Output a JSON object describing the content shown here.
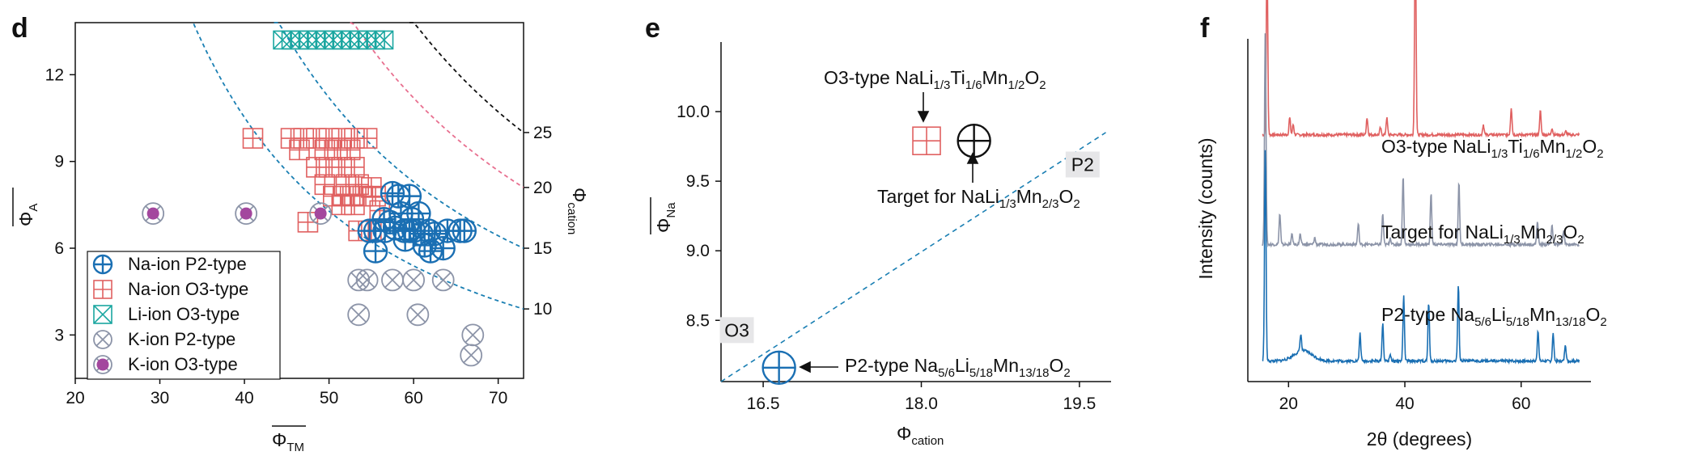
{
  "colors": {
    "p2": "#1a6fb3",
    "o3": "#e06060",
    "li": "#1aa6a0",
    "k": "#8c94a8",
    "kfill": "#a3479e",
    "curve_blue": "#1a7fb3",
    "curve_pink": "#e87090",
    "curve_black": "#111111",
    "xrd_red": "#e06060",
    "xrd_grey": "#8c94a8",
    "xrd_blue": "#1a6fb3",
    "band_grey": "#e6e6e8"
  },
  "chart_data": [
    {
      "panel": "d",
      "type": "scatter",
      "xlabel": "Φ",
      "xlabel_sub": "TM",
      "ylabel": "Φ",
      "ylabel_sub": "A",
      "y2label": "Φ",
      "y2label_sub": "cation",
      "xlim": [
        20,
        73
      ],
      "ylim": [
        1.5,
        13.8
      ],
      "xticks": [
        20,
        30,
        40,
        50,
        60,
        70
      ],
      "yticks": [
        3,
        6,
        9,
        12
      ],
      "contours": [
        {
          "label": "10",
          "c": 10.0,
          "y_right": 3.9,
          "color_key": "curve_blue"
        },
        {
          "label": "15",
          "c": 14.5,
          "y_right": 6.0,
          "color_key": "curve_blue"
        },
        {
          "label": "20",
          "c": 19.5,
          "y_right": 8.1,
          "color_key": "curve_pink"
        },
        {
          "label": "25",
          "c": 24.2,
          "y_right": 10.0,
          "color_key": "curve_black"
        }
      ],
      "legend": [
        {
          "key": "p2",
          "label": "Na-ion P2-type"
        },
        {
          "key": "o3",
          "label": "Na-ion O3-type"
        },
        {
          "key": "li",
          "label": "Li-ion O3-type"
        },
        {
          "key": "k",
          "label": "K-ion P2-type"
        },
        {
          "key": "kfill",
          "label": "K-ion O3-type"
        }
      ],
      "series": {
        "p2": [
          [
            57.5,
            7.9
          ],
          [
            58.2,
            7.8
          ],
          [
            59.5,
            7.8
          ],
          [
            58.5,
            7.2
          ],
          [
            59.8,
            7.0
          ],
          [
            60.6,
            7.2
          ],
          [
            56.5,
            7.0
          ],
          [
            57.2,
            6.9
          ],
          [
            55.5,
            6.6
          ],
          [
            56.6,
            6.6
          ],
          [
            57.8,
            6.7
          ],
          [
            58.9,
            6.6
          ],
          [
            60.0,
            6.6
          ],
          [
            60.9,
            6.5
          ],
          [
            61.8,
            6.6
          ],
          [
            62.5,
            6.5
          ],
          [
            64.0,
            6.6
          ],
          [
            65.5,
            6.6
          ],
          [
            66.0,
            6.6
          ],
          [
            54.8,
            6.6
          ],
          [
            59.0,
            6.3
          ],
          [
            62.0,
            5.9
          ],
          [
            63.5,
            6.0
          ],
          [
            55.5,
            5.9
          ],
          [
            59.5,
            6.6
          ],
          [
            61.3,
            6.1
          ]
        ],
        "o3": [
          [
            41,
            9.8
          ],
          [
            45.5,
            9.8
          ],
          [
            47,
            9.8
          ],
          [
            48.5,
            9.8
          ],
          [
            50,
            9.8
          ],
          [
            51.5,
            9.8
          ],
          [
            53,
            9.8
          ],
          [
            54.5,
            9.8
          ],
          [
            46.5,
            9.4
          ],
          [
            49.5,
            9.4
          ],
          [
            51,
            9.4
          ],
          [
            52.5,
            9.4
          ],
          [
            48.5,
            8.8
          ],
          [
            50,
            8.8
          ],
          [
            51.5,
            8.8
          ],
          [
            53,
            8.8
          ],
          [
            49.5,
            8.2
          ],
          [
            52,
            8.2
          ],
          [
            53.5,
            8.2
          ],
          [
            50.5,
            7.8
          ],
          [
            52.5,
            7.8
          ],
          [
            54,
            7.8
          ],
          [
            55.5,
            7.8
          ],
          [
            51.5,
            7.5
          ],
          [
            53,
            7.5
          ],
          [
            55,
            8.1
          ],
          [
            47.5,
            6.9
          ],
          [
            56,
            7.3
          ],
          [
            53.5,
            6.6
          ],
          [
            55,
            6.6
          ]
        ],
        "li": [
          [
            44.5,
            13.2
          ],
          [
            45.5,
            13.2
          ],
          [
            46.5,
            13.2
          ],
          [
            47.5,
            13.2
          ],
          [
            48.5,
            13.2
          ],
          [
            49.5,
            13.2
          ],
          [
            50.5,
            13.2
          ],
          [
            51.5,
            13.2
          ],
          [
            52.5,
            13.2
          ],
          [
            53.5,
            13.2
          ],
          [
            54.5,
            13.2
          ],
          [
            55.5,
            13.2
          ],
          [
            56.5,
            13.2
          ]
        ],
        "k": [
          [
            29.2,
            7.2
          ],
          [
            40.2,
            7.2
          ],
          [
            49.0,
            7.2
          ],
          [
            53.5,
            4.9
          ],
          [
            54.5,
            4.9
          ],
          [
            57.5,
            4.9
          ],
          [
            60.0,
            4.9
          ],
          [
            63.5,
            4.9
          ],
          [
            53.5,
            3.7
          ],
          [
            60.5,
            3.7
          ],
          [
            67.0,
            3.0
          ],
          [
            66.8,
            2.3
          ]
        ],
        "kfill": [
          [
            29.2,
            7.2
          ],
          [
            40.2,
            7.2
          ],
          [
            49.0,
            7.2
          ]
        ]
      }
    },
    {
      "panel": "e",
      "type": "scatter",
      "xlabel": "Φ",
      "xlabel_sub": "cation",
      "ylabel": "Φ",
      "ylabel_sub": "Na",
      "xlim": [
        16.1,
        19.8
      ],
      "ylim": [
        8.06,
        10.5
      ],
      "xticks": [
        16.5,
        18.0,
        19.5
      ],
      "yticks": [
        8.5,
        9.0,
        9.5,
        10.0
      ],
      "xtick_labels": [
        "16.5",
        "18.0",
        "19.5"
      ],
      "ytick_labels": [
        "8.5",
        "9.0",
        "9.5",
        "10.0"
      ],
      "boundary": [
        [
          16.1,
          8.06
        ],
        [
          19.75,
          9.85
        ]
      ],
      "regions": [
        {
          "label": "P2",
          "x": 19.53,
          "y": 9.62
        },
        {
          "label": "O3",
          "x": 16.25,
          "y": 8.43
        }
      ],
      "points": [
        {
          "key": "o3",
          "x": 18.05,
          "y": 9.79,
          "marker": "square-plus"
        },
        {
          "key": "black",
          "x": 18.5,
          "y": 9.79,
          "marker": "circle-plus"
        },
        {
          "key": "p2",
          "x": 16.65,
          "y": 8.16,
          "marker": "circle-plus"
        }
      ],
      "annotations": {
        "o3": {
          "text": "O3-type NaLi",
          "s1": "1/3",
          "t2": "Ti",
          "s2": "1/6",
          "t3": "Mn",
          "s3": "1/2",
          "t4": "O",
          "s4": "2"
        },
        "target": {
          "text": "Target for NaLi",
          "s1": "1/3",
          "t2": "Mn",
          "s2": "2/3",
          "t3": "O",
          "s3": "2"
        },
        "p2": {
          "text": "P2-type Na",
          "s1": "5/6",
          "t2": "Li",
          "s2": "5/18",
          "t3": "Mn",
          "s3": "13/18",
          "t4": "O",
          "s4": "2"
        }
      }
    },
    {
      "panel": "f",
      "type": "line",
      "xlabel": "2θ (degrees)",
      "ylabel": "Intensity (counts)",
      "xlim": [
        13,
        72
      ],
      "xticks": [
        20,
        40,
        60
      ],
      "series": [
        {
          "name": "O3-type NaLi1/3Ti1/6Mn1/2O2",
          "color_key": "xrd_red",
          "baseline": 0.72,
          "peaks": [
            [
              16.3,
              0.52
            ],
            [
              20.2,
              0.05
            ],
            [
              20.8,
              0.03
            ],
            [
              33.5,
              0.05
            ],
            [
              35.8,
              0.02
            ],
            [
              36.9,
              0.05
            ],
            [
              41.8,
              0.6
            ],
            [
              53.5,
              0.03
            ],
            [
              58.3,
              0.08
            ],
            [
              63.3,
              0.07
            ],
            [
              65.3,
              0.02
            ],
            [
              67.7,
              0.01
            ]
          ]
        },
        {
          "name": "Target for NaLi1/3Mn2/3O2",
          "color_key": "xrd_grey",
          "baseline": 0.4,
          "peaks": [
            [
              16.0,
              0.62
            ],
            [
              18.5,
              0.09
            ],
            [
              20.6,
              0.03
            ],
            [
              22.0,
              0.03
            ],
            [
              24.5,
              0.02
            ],
            [
              32.0,
              0.06
            ],
            [
              36.2,
              0.09
            ],
            [
              37.5,
              0.02
            ],
            [
              39.7,
              0.2
            ],
            [
              44.5,
              0.15
            ],
            [
              49.3,
              0.18
            ],
            [
              62.8,
              0.07
            ],
            [
              65.3,
              0.06
            ],
            [
              67.3,
              0.04
            ]
          ]
        },
        {
          "name": "P2-type Na5/6Li5/18Mn13/18O2",
          "color_key": "xrd_blue",
          "baseline": 0.06,
          "peaks": [
            [
              16.0,
              0.62
            ],
            [
              22.1,
              0.05
            ],
            [
              32.3,
              0.08
            ],
            [
              36.2,
              0.11
            ],
            [
              37.5,
              0.02
            ],
            [
              39.8,
              0.19
            ],
            [
              44.1,
              0.17
            ],
            [
              49.2,
              0.22
            ],
            [
              62.9,
              0.09
            ],
            [
              65.5,
              0.08
            ],
            [
              67.6,
              0.05
            ]
          ]
        }
      ],
      "labels": [
        {
          "text": "O3-type NaLi",
          "s1": "1/3",
          "t2": "Ti",
          "s2": "1/6",
          "t3": "Mn",
          "s3": "1/2",
          "t4": "O",
          "s4": "2"
        },
        {
          "text": "Target for NaLi",
          "s1": "1/3",
          "t2": "Mn",
          "s2": "2/3",
          "t3": "O",
          "s3": "2"
        },
        {
          "text": "P2-type Na",
          "s1": "5/6",
          "t2": "Li",
          "s2": "5/18",
          "t3": "Mn",
          "s3": "13/18",
          "t4": "O",
          "s4": "2"
        }
      ]
    }
  ],
  "panels": {
    "d": "d",
    "e": "e",
    "f": "f"
  }
}
